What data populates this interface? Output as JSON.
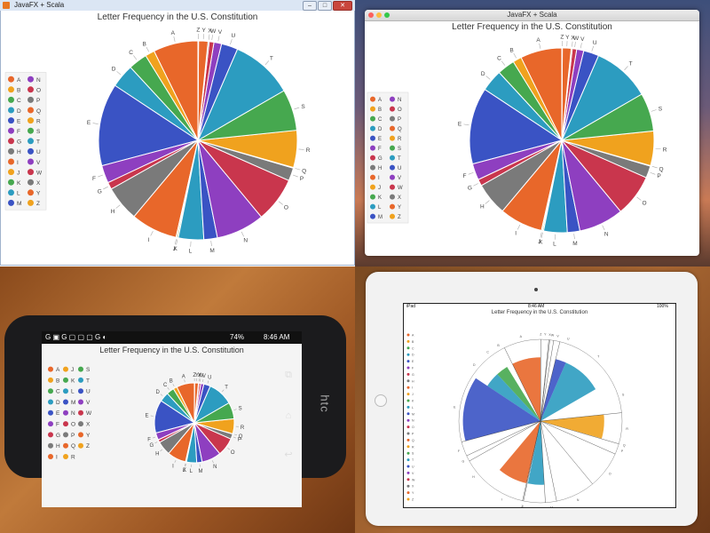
{
  "windows_app": {
    "title": "JavaFX + Scala",
    "buttons": [
      "–",
      "□",
      "✕"
    ]
  },
  "mac_app": {
    "title": "JavaFX + Scala"
  },
  "phone": {
    "status_time": "8:46 AM",
    "status_battery": "74%",
    "brand": "htc"
  },
  "tablet": {
    "status_left": "iPad",
    "status_time": "8:46 AM",
    "status_battery": "100%"
  },
  "colors": {
    "A": "#e8672a",
    "B": "#f0a21e",
    "C": "#46a84f",
    "D": "#2c9cc0",
    "E": "#3a53c4",
    "F": "#8e3fc0",
    "G": "#c9364d",
    "H": "#7a7a7a",
    "I": "#e8672a",
    "J": "#f0a21e",
    "K": "#46a84f",
    "L": "#2c9cc0",
    "M": "#3a53c4",
    "N": "#8e3fc0",
    "O": "#c9364d",
    "P": "#7a7a7a",
    "Q": "#e8672a",
    "R": "#f0a21e",
    "S": "#46a84f",
    "T": "#2c9cc0",
    "U": "#3a53c4",
    "V": "#8e3fc0",
    "W": "#c9364d",
    "X": "#7a7a7a",
    "Y": "#e8672a",
    "Z": "#f0a21e"
  },
  "chart_data": [
    {
      "type": "pie",
      "title": "Letter Frequency in the U.S. Constitution",
      "categories": [
        "A",
        "B",
        "C",
        "D",
        "E",
        "F",
        "G",
        "H",
        "I",
        "J",
        "K",
        "L",
        "M",
        "N",
        "O",
        "P",
        "Q",
        "R",
        "S",
        "T",
        "U",
        "V",
        "W",
        "X",
        "Y",
        "Z"
      ],
      "values": [
        7.6,
        1.6,
        3.2,
        4.0,
        14.0,
        3.0,
        1.2,
        6.0,
        7.9,
        0.2,
        0.2,
        4.3,
        2.3,
        8.2,
        7.7,
        2.2,
        0.1,
        6.3,
        7.0,
        10.6,
        2.8,
        1.3,
        0.8,
        0.2,
        1.6,
        0.1
      ],
      "legend": "left, two columns (A–M, N–Z)"
    }
  ]
}
